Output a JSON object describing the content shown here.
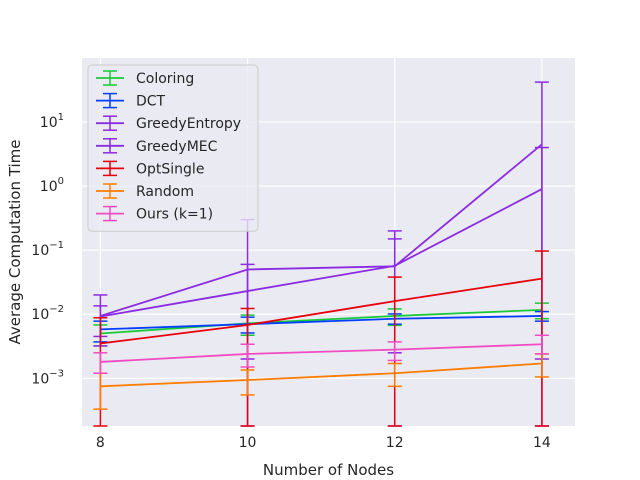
{
  "chart_data": {
    "type": "line",
    "title": "",
    "xlabel": "Number of Nodes",
    "ylabel": "Average Computation Time",
    "y_scale": "log",
    "x": [
      8,
      10,
      12,
      14
    ],
    "x_ticks": [
      "8",
      "10",
      "12",
      "14"
    ],
    "xlim": [
      7.75,
      14.45
    ],
    "ylim": [
      0.00018,
      100
    ],
    "y_ticks": [
      {
        "value": 0.001,
        "base": "10",
        "exp": "−3"
      },
      {
        "value": 0.01,
        "base": "10",
        "exp": "−2"
      },
      {
        "value": 0.1,
        "base": "10",
        "exp": "−1"
      },
      {
        "value": 1,
        "base": "10",
        "exp": "0"
      },
      {
        "value": 10,
        "base": "10",
        "exp": "1"
      }
    ],
    "grid": true,
    "legend_position": "upper-left",
    "error_bars": true,
    "series": [
      {
        "name": "Coloring",
        "color": "#1ac938",
        "values": [
          0.005,
          0.0072,
          0.0094,
          0.0117
        ],
        "err_low": [
          0.0032,
          0.0047,
          0.0067,
          0.0085
        ],
        "err_high": [
          0.0068,
          0.0097,
          0.0121,
          0.0149
        ]
      },
      {
        "name": "DCT",
        "color": "#023eff",
        "values": [
          0.0058,
          0.007,
          0.0085,
          0.0094
        ],
        "err_low": [
          0.0037,
          0.0051,
          0.007,
          0.0078
        ],
        "err_high": [
          0.0078,
          0.009,
          0.0101,
          0.011
        ]
      },
      {
        "name": "GreedyEntropy",
        "color": "#8b2be2",
        "values": [
          0.0094,
          0.05,
          0.056,
          4.5
        ],
        "err_low": [
          0.0045,
          0.002,
          0.0025,
          0.002
        ],
        "err_high": [
          0.0135,
          0.3,
          0.15,
          42
        ]
      },
      {
        "name": "GreedyMEC",
        "color": "#8b2be2",
        "values": [
          0.0092,
          0.023,
          0.057,
          0.9
        ],
        "err_low": [
          0.0032,
          0.00018,
          0.00018,
          0.00018
        ],
        "err_high": [
          0.02,
          0.06,
          0.2,
          4.0
        ]
      },
      {
        "name": "OptSingle",
        "color": "#e8000b",
        "values": [
          0.0035,
          0.0068,
          0.016,
          0.036
        ],
        "err_low": [
          0.00018,
          0.00018,
          0.00018,
          0.00018
        ],
        "err_high": [
          0.0088,
          0.0123,
          0.038,
          0.097
        ]
      },
      {
        "name": "Random",
        "color": "#ff7c00",
        "values": [
          0.00075,
          0.00094,
          0.0012,
          0.0017
        ],
        "err_low": [
          0.00033,
          0.00055,
          0.00075,
          0.00105
        ],
        "err_high": [
          0.0012,
          0.00135,
          0.0017,
          0.0024
        ]
      },
      {
        "name": "Ours (k=1)",
        "color": "#f14cc1",
        "values": [
          0.0018,
          0.0024,
          0.0028,
          0.0034
        ],
        "err_low": [
          0.0012,
          0.0015,
          0.0019,
          0.0024
        ],
        "err_high": [
          0.0025,
          0.0034,
          0.0037,
          0.0047
        ]
      }
    ]
  }
}
